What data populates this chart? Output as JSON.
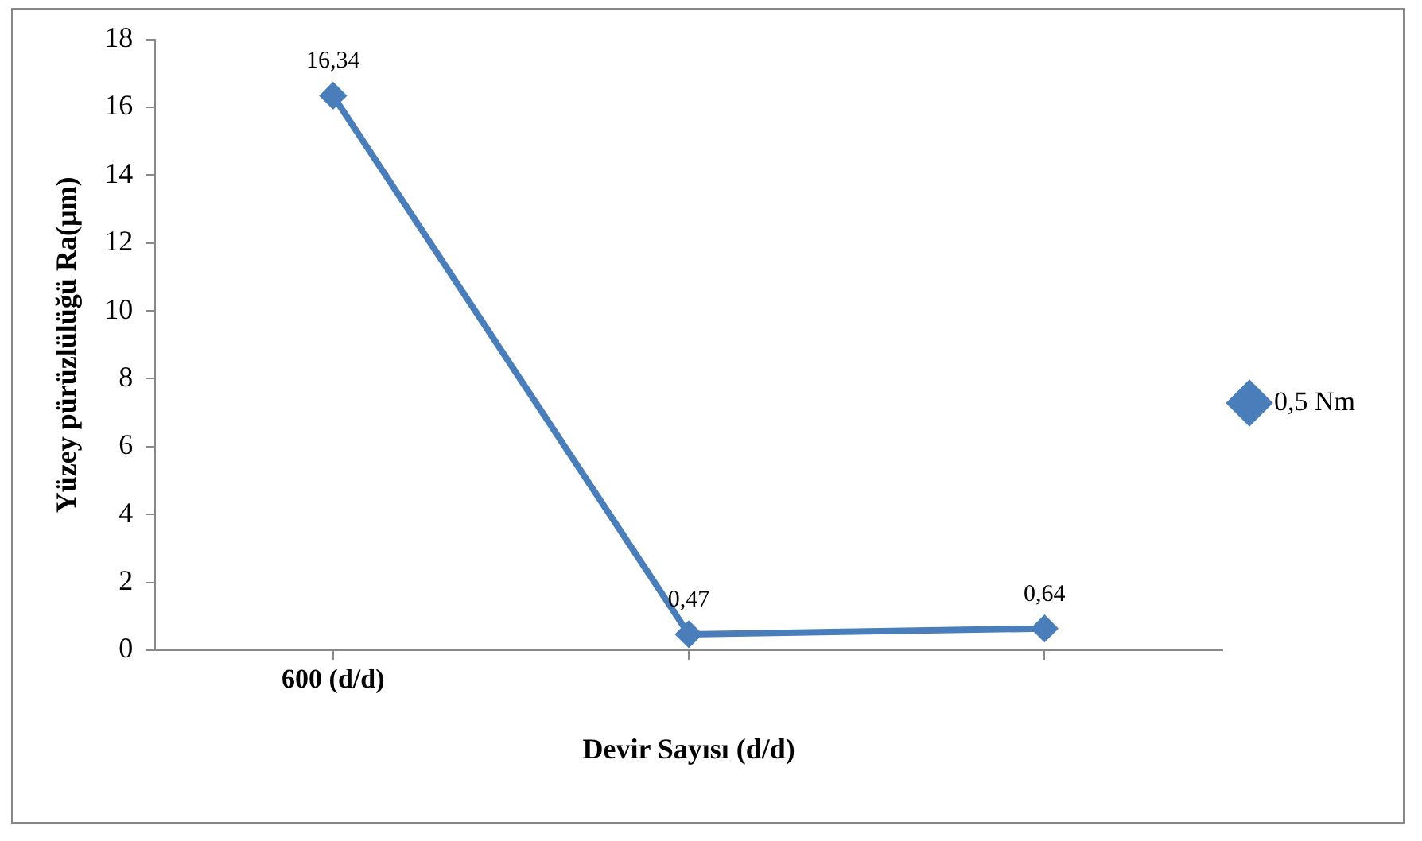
{
  "chart_data": {
    "type": "line",
    "xlabel": "Devir Sayısı (d/d)",
    "ylabel": "Yüzey pürüzlülüğü Ra(µm)",
    "categories": [
      "600 (d/d)",
      null,
      null
    ],
    "series": [
      {
        "name": "0,5 Nm",
        "color": "#4a7ebb",
        "values": [
          16.34,
          0.47,
          0.64
        ],
        "value_labels": [
          "16,34",
          "0,47",
          "0,64"
        ]
      }
    ],
    "ylim": [
      0,
      18
    ],
    "yticks": [
      0,
      2,
      4,
      6,
      8,
      10,
      12,
      14,
      16,
      18
    ],
    "grid": false,
    "legend": "right",
    "marker": "diamond",
    "line_style": "solid"
  }
}
